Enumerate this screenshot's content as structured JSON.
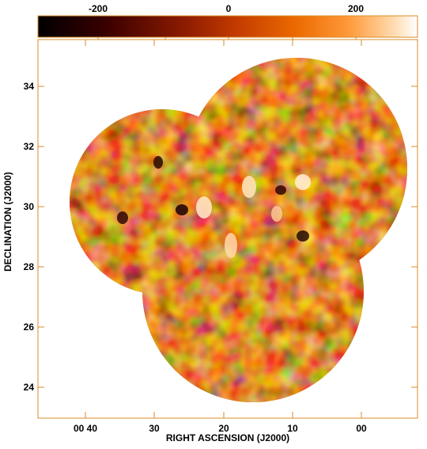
{
  "colorbar": {
    "tick_labels": [
      "-200",
      "0",
      "200"
    ],
    "tick_values": [
      -200,
      0,
      200
    ],
    "range": [
      -300,
      300
    ],
    "colormap": [
      "#000000",
      "#3a0000",
      "#8a1a00",
      "#c23a00",
      "#ec6a00",
      "#ff9a3a",
      "#ffd7a8",
      "#ffffff"
    ]
  },
  "axes": {
    "xlabel": "RIGHT ASCENSION (J2000)",
    "ylabel": "DECLINATION (J2000)",
    "xtick_labels": [
      "00 40",
      "30",
      "20",
      "10",
      "00"
    ],
    "ytick_labels": [
      "34",
      "32",
      "30",
      "28",
      "26",
      "24"
    ],
    "frame_color": "#d98c2a"
  },
  "image": {
    "background": "#ffffff",
    "map_base_color": "#c85a10"
  }
}
